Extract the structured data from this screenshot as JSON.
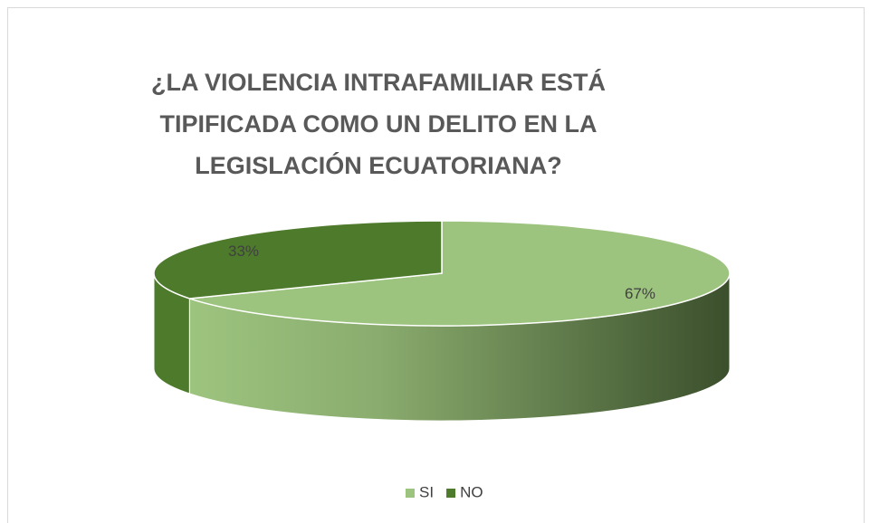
{
  "chart_data": {
    "type": "pie",
    "title": "¿LA VIOLENCIA INTRAFAMILIAR ESTÁ TIPIFICADA COMO UN DELITO EN LA LEGISLACIÓN ECUATORIANA?",
    "categories": [
      "SI",
      "NO"
    ],
    "values": [
      67,
      33
    ],
    "value_labels": [
      "67%",
      "33%"
    ],
    "colors": [
      "#9dc47f",
      "#4e7a2c"
    ],
    "legend": "bottom"
  }
}
